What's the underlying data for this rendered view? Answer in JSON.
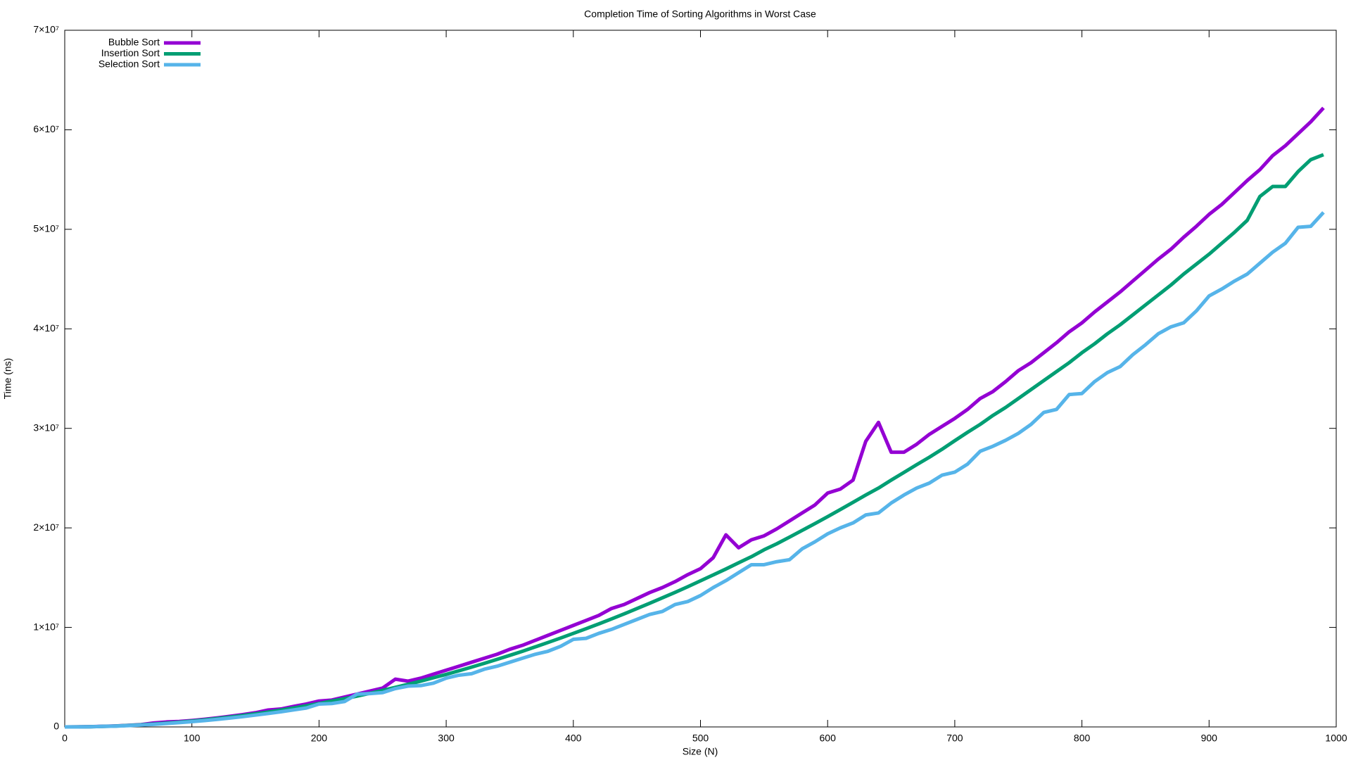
{
  "chart_data": {
    "type": "line",
    "title": "Completion Time of Sorting Algorithms in Worst Case",
    "x_label": "Size (N)",
    "y_label": "Time (ns)",
    "x": [
      0,
      10,
      20,
      30,
      40,
      50,
      60,
      70,
      80,
      90,
      100,
      110,
      120,
      130,
      140,
      150,
      160,
      170,
      180,
      190,
      200,
      210,
      220,
      230,
      240,
      250,
      260,
      270,
      280,
      290,
      300,
      310,
      320,
      330,
      340,
      350,
      360,
      370,
      380,
      390,
      400,
      410,
      420,
      430,
      440,
      450,
      460,
      470,
      480,
      490,
      500,
      510,
      520,
      530,
      540,
      550,
      560,
      570,
      580,
      590,
      600,
      610,
      620,
      630,
      640,
      650,
      660,
      670,
      680,
      690,
      700,
      710,
      720,
      730,
      740,
      750,
      760,
      770,
      780,
      790,
      800,
      810,
      820,
      830,
      840,
      850,
      860,
      870,
      880,
      890,
      900,
      910,
      920,
      930,
      940,
      950,
      960,
      970,
      980,
      990
    ],
    "series": [
      {
        "name": "Bubble Sort",
        "color": "#9400d3",
        "values": [
          0,
          10000,
          30000,
          60000,
          100000,
          160000,
          230000,
          400000,
          500000,
          550000,
          650000,
          770000,
          910000,
          1070000,
          1240000,
          1430000,
          1700000,
          1800000,
          2060000,
          2300000,
          2600000,
          2700000,
          3000000,
          3300000,
          3600000,
          3900000,
          4800000,
          4600000,
          4900000,
          5300000,
          5700000,
          6100000,
          6500000,
          6900000,
          7300000,
          7800000,
          8200000,
          8700000,
          9200000,
          9700000,
          10200000,
          10700000,
          11200000,
          11900000,
          12300000,
          12900000,
          13500000,
          14000000,
          14600000,
          15300000,
          15900000,
          17000000,
          19300000,
          18000000,
          18800000,
          19200000,
          19900000,
          20700000,
          21500000,
          22300000,
          23500000,
          23900000,
          24800000,
          28700000,
          30600000,
          27600000,
          27600000,
          28400000,
          29400000,
          30200000,
          31000000,
          31900000,
          33000000,
          33700000,
          34700000,
          35800000,
          36600000,
          37600000,
          38600000,
          39700000,
          40600000,
          41700000,
          42700000,
          43700000,
          44800000,
          45900000,
          47000000,
          48000000,
          49200000,
          50300000,
          51500000,
          52500000,
          53700000,
          54900000,
          56000000,
          57400000,
          58400000,
          59600000,
          60800000,
          62200000
        ]
      },
      {
        "name": "Insertion Sort",
        "color": "#009e73",
        "values": [
          0,
          10000,
          20000,
          50000,
          90000,
          150000,
          210000,
          290000,
          380000,
          480000,
          590000,
          710000,
          850000,
          990000,
          1150000,
          1320000,
          1500000,
          1700000,
          1900000,
          2120000,
          2350000,
          2600000,
          2840000,
          3100000,
          3380000,
          3670000,
          3970000,
          4280000,
          4600000,
          4940000,
          5280000,
          5640000,
          6010000,
          6390000,
          6790000,
          7190000,
          7600000,
          8040000,
          8480000,
          8930000,
          9400000,
          9870000,
          10350000,
          10850000,
          11360000,
          11890000,
          12420000,
          12970000,
          13520000,
          14090000,
          14680000,
          15270000,
          15870000,
          16490000,
          17100000,
          17800000,
          18400000,
          19070000,
          19750000,
          20430000,
          21130000,
          21840000,
          22570000,
          23300000,
          24000000,
          24800000,
          25570000,
          26350000,
          27100000,
          27900000,
          28760000,
          29600000,
          30400000,
          31300000,
          32100000,
          33000000,
          33900000,
          34800000,
          35700000,
          36600000,
          37600000,
          38500000,
          39500000,
          40400000,
          41400000,
          42400000,
          43400000,
          44400000,
          45500000,
          46500000,
          47500000,
          48600000,
          49700000,
          50900000,
          53300000,
          54300000,
          54300000,
          55800000,
          57000000,
          57500000
        ]
      },
      {
        "name": "Selection Sort",
        "color": "#56b4e9",
        "values": [
          0,
          0,
          20000,
          50000,
          80000,
          130000,
          190000,
          260000,
          340000,
          430000,
          530000,
          640000,
          760000,
          890000,
          1030000,
          1190000,
          1350000,
          1520000,
          1710000,
          1900000,
          2300000,
          2350000,
          2550000,
          3300000,
          3350000,
          3450000,
          3850000,
          4100000,
          4150000,
          4400000,
          4900000,
          5200000,
          5350000,
          5800000,
          6100000,
          6500000,
          6900000,
          7300000,
          7600000,
          8100000,
          8800000,
          8900000,
          9400000,
          9800000,
          10300000,
          10800000,
          11300000,
          11600000,
          12300000,
          12600000,
          13200000,
          14000000,
          14700000,
          15500000,
          16300000,
          16300000,
          16600000,
          16800000,
          17900000,
          18600000,
          19400000,
          20000000,
          20500000,
          21300000,
          21500000,
          22500000,
          23300000,
          24000000,
          24500000,
          25300000,
          25600000,
          26400000,
          27700000,
          28200000,
          28800000,
          29500000,
          30400000,
          31600000,
          31900000,
          33400000,
          33500000,
          34700000,
          35600000,
          36200000,
          37400000,
          38400000,
          39500000,
          40200000,
          40600000,
          41800000,
          43300000,
          44000000,
          44800000,
          45500000,
          46600000,
          47700000,
          48600000,
          50200000,
          50300000,
          51700000
        ]
      }
    ],
    "xlim": [
      0,
      1000
    ],
    "xticks": [
      0,
      100,
      200,
      300,
      400,
      500,
      600,
      700,
      800,
      900,
      1000
    ],
    "ylim": [
      0,
      70000000
    ],
    "yticks": [
      0,
      {
        "value": 10000000,
        "label": "1×10⁷"
      },
      {
        "value": 20000000,
        "label": "2×10⁷"
      },
      {
        "value": 30000000,
        "label": "3×10⁷"
      },
      {
        "value": 40000000,
        "label": "4×10⁷"
      },
      {
        "value": 50000000,
        "label": "5×10⁷"
      },
      {
        "value": 60000000,
        "label": "6×10⁷"
      },
      {
        "value": 70000000,
        "label": "7×10⁷"
      }
    ],
    "grid": false,
    "legend": "top-left"
  }
}
